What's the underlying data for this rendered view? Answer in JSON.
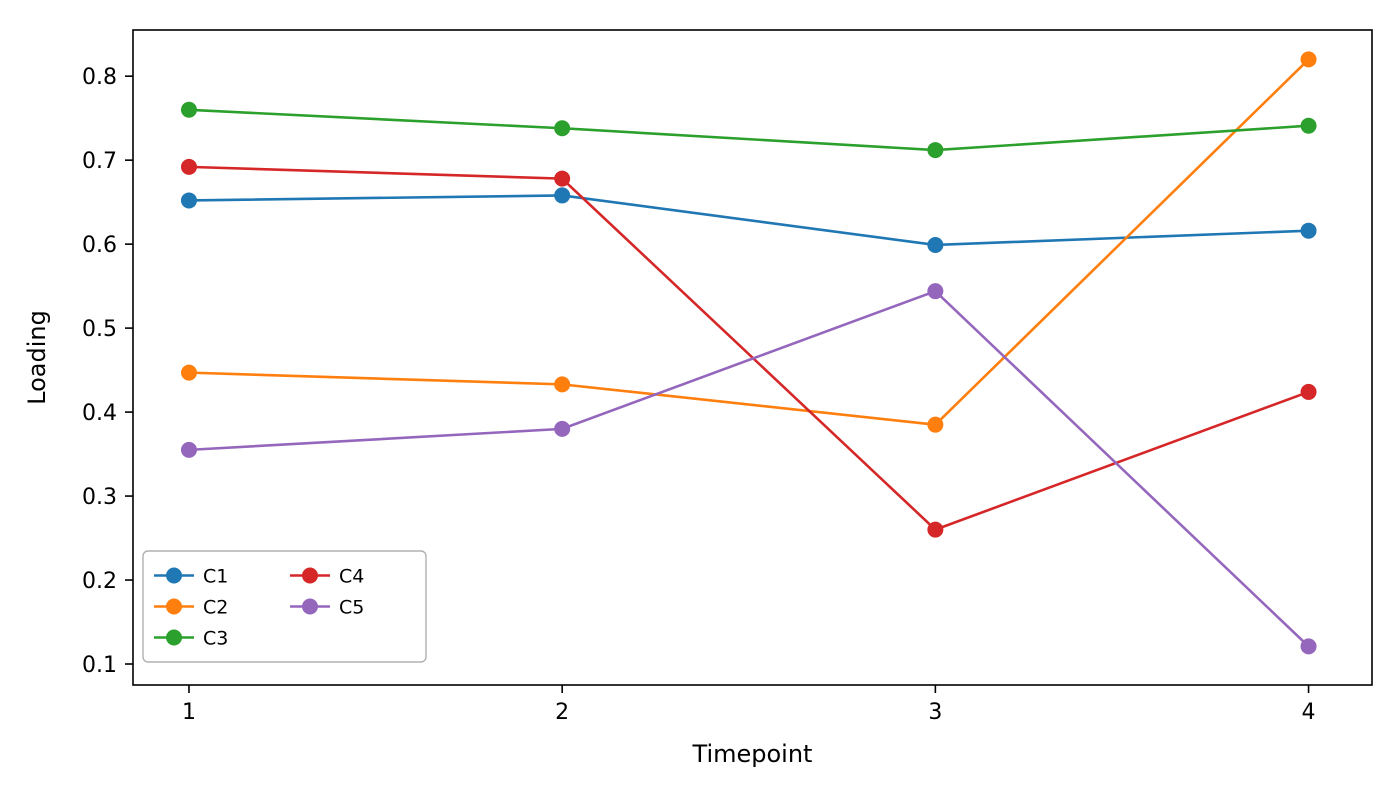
{
  "chart_data": {
    "type": "line",
    "title": "",
    "xlabel": "Timepoint",
    "ylabel": "Loading",
    "x": [
      1,
      2,
      3,
      4
    ],
    "series": [
      {
        "name": "C1",
        "color": "#1f77b4",
        "values": [
          0.652,
          0.658,
          0.599,
          0.616
        ]
      },
      {
        "name": "C2",
        "color": "#ff7f0e",
        "values": [
          0.447,
          0.433,
          0.385,
          0.82
        ]
      },
      {
        "name": "C3",
        "color": "#2ca02c",
        "values": [
          0.76,
          0.738,
          0.712,
          0.741
        ]
      },
      {
        "name": "C4",
        "color": "#d62728",
        "values": [
          0.692,
          0.678,
          0.26,
          0.424
        ]
      },
      {
        "name": "C5",
        "color": "#9467bd",
        "values": [
          0.355,
          0.38,
          0.544,
          0.121
        ]
      }
    ],
    "xticks": [
      1,
      2,
      3,
      4
    ],
    "yticks": [
      0.1,
      0.2,
      0.3,
      0.4,
      0.5,
      0.6,
      0.7,
      0.8
    ],
    "xlim": [
      0.85,
      4.17
    ],
    "ylim": [
      0.075,
      0.855
    ],
    "grid": false,
    "legend": {
      "position": "lower left",
      "columns": 2,
      "entries": [
        "C1",
        "C2",
        "C3",
        "C4",
        "C5"
      ],
      "frame_color": "#b0b0b0",
      "fill_color": "#ffffff"
    },
    "axis_color": "#000000",
    "background": "#ffffff",
    "marker": "circle",
    "marker_size": 8,
    "line_width": 2.6
  }
}
